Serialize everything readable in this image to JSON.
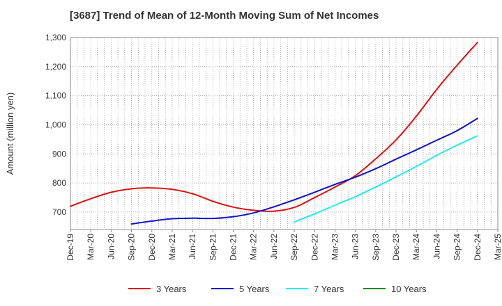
{
  "chart_data": {
    "type": "line",
    "title": "[3687]  Trend of Mean of 12-Month Moving Sum of Net Incomes",
    "ylabel": "Amount (million yen)",
    "xlabel": "",
    "ylim": [
      640,
      1300
    ],
    "yticks": [
      700,
      800,
      900,
      1000,
      1100,
      1200,
      1300
    ],
    "ytick_labels": [
      "700",
      "800",
      "900",
      "1,000",
      "1,100",
      "1,200",
      "1,300"
    ],
    "xticks": [
      "Dec-19",
      "Mar-20",
      "Jun-20",
      "Sep-20",
      "Dec-20",
      "Mar-21",
      "Jun-21",
      "Sep-21",
      "Dec-21",
      "Mar-22",
      "Jun-22",
      "Sep-22",
      "Dec-22",
      "Mar-23",
      "Jun-23",
      "Sep-23",
      "Dec-23",
      "Mar-24",
      "Jun-24",
      "Sep-24",
      "Dec-24",
      "Mar-25"
    ],
    "grid": true,
    "legend_position": "bottom",
    "series": [
      {
        "name": "3 Years",
        "color": "#dd1111",
        "x": [
          "Dec-19",
          "Mar-20",
          "Jun-20",
          "Sep-20",
          "Dec-20",
          "Mar-21",
          "Jun-21",
          "Sep-21",
          "Dec-21",
          "Mar-22",
          "Jun-22",
          "Sep-22",
          "Dec-22",
          "Mar-23",
          "Jun-23",
          "Sep-23",
          "Dec-23",
          "Mar-24",
          "Jun-24",
          "Sep-24",
          "Dec-24"
        ],
        "values": [
          720,
          746,
          768,
          780,
          783,
          778,
          763,
          737,
          717,
          706,
          703,
          716,
          750,
          786,
          825,
          883,
          948,
          1030,
          1122,
          1205,
          1283
        ]
      },
      {
        "name": "5 Years",
        "color": "#1111cc",
        "x": [
          "Sep-20",
          "Dec-20",
          "Mar-21",
          "Jun-21",
          "Sep-21",
          "Dec-21",
          "Mar-22",
          "Jun-22",
          "Sep-22",
          "Dec-22",
          "Mar-23",
          "Jun-23",
          "Sep-23",
          "Dec-23",
          "Mar-24",
          "Jun-24",
          "Sep-24",
          "Dec-24"
        ],
        "values": [
          659,
          669,
          677,
          679,
          678,
          684,
          697,
          718,
          742,
          768,
          795,
          820,
          849,
          882,
          914,
          947,
          980,
          1022
        ]
      },
      {
        "name": "7 Years",
        "color": "#22eeee",
        "x": [
          "Sep-22",
          "Dec-22",
          "Mar-23",
          "Jun-23",
          "Sep-23",
          "Dec-23",
          "Mar-24",
          "Jun-24",
          "Sep-24",
          "Dec-24"
        ],
        "values": [
          666,
          694,
          724,
          753,
          786,
          821,
          857,
          895,
          930,
          962
        ]
      },
      {
        "name": "10 Years",
        "color": "#228822",
        "x": [],
        "values": []
      }
    ]
  }
}
